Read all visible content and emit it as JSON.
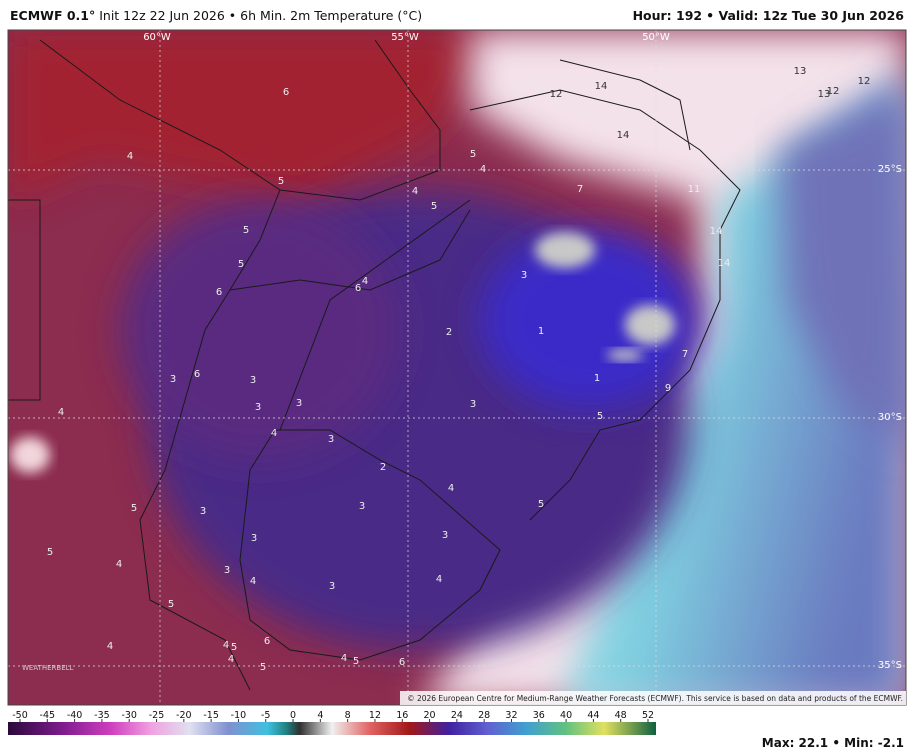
{
  "header": {
    "model": "ECMWF 0.1°",
    "init": "Init 12z 22 Jun 2026",
    "product": "• 6h Min. 2m Temperature (°C)",
    "hour": "Hour: 192",
    "valid": "• Valid: 12z Tue 30 Jun 2026"
  },
  "map": {
    "lon_labels": [
      "60°W",
      "55°W",
      "50°W"
    ],
    "lat_labels": [
      "25°S",
      "30°S",
      "35°S"
    ],
    "labels": [
      "6",
      "4",
      "5",
      "5",
      "5",
      "6",
      "6",
      "4",
      "4",
      "5",
      "5",
      "4",
      "7",
      "11",
      "12",
      "14",
      "14",
      "13",
      "12",
      "13",
      "12",
      "14",
      "14",
      "3",
      "2",
      "1",
      "1",
      "7",
      "9",
      "5",
      "3",
      "3",
      "6",
      "3",
      "3",
      "3",
      "4",
      "3",
      "2",
      "4",
      "4",
      "5",
      "5",
      "3",
      "3",
      "3",
      "3",
      "5",
      "4",
      "3",
      "4",
      "3",
      "4",
      "5",
      "4",
      "4",
      "5",
      "6",
      "4",
      "5",
      "4",
      "5",
      "6"
    ],
    "copyright": "© 2026 European Centre for Medium-Range Weather Forecasts (ECMWF). This service is based on data and products of the ECMWF.",
    "logo": "WEATHERBELL"
  },
  "colorbar": {
    "ticks": [
      -50,
      -45,
      -40,
      -35,
      -30,
      -25,
      -20,
      -15,
      -10,
      -5,
      0,
      4,
      8,
      12,
      16,
      20,
      24,
      28,
      32,
      36,
      40,
      44,
      48,
      52
    ]
  },
  "footer": {
    "stats": "Max: 22.1 • Min: -2.1"
  }
}
